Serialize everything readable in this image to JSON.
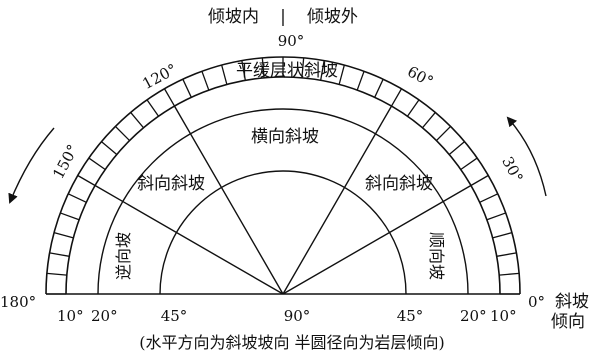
{
  "header": {
    "left_label": "倾坡内",
    "separator": "|",
    "right_label": "倾坡外"
  },
  "arc_angles": {
    "a90": "90°",
    "a120": "120°",
    "a60": "60°",
    "a150": "150°",
    "a30": "30°"
  },
  "zones": {
    "gentle_layered": "平缓层状斜坡",
    "transverse": "横向斜坡",
    "oblique_left": "斜向斜坡",
    "oblique_right": "斜向斜坡",
    "reverse": "逆向坡",
    "forward": "顺向坡"
  },
  "baseline": {
    "deg180": "180°",
    "deg10_left": "10°",
    "deg20_left": "20°",
    "deg45_left": "45°",
    "deg90": "90°",
    "deg45_right": "45°",
    "deg20_right": "20°",
    "deg10_right": "10°",
    "deg0": "0°",
    "slope_word": "斜坡",
    "direction_word": "倾向"
  },
  "caption": "(水平方向为斜坡坡向 半圆径向为岩层倾向)"
}
